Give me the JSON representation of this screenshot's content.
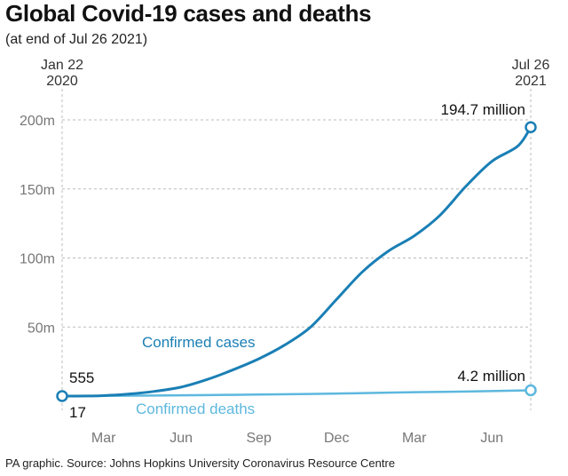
{
  "title": "Global Covid-19 cases and deaths",
  "subtitle": "(at end of Jul 26 2021)",
  "source": "PA graphic. Source: Johns Hopkins University Coronavirus Resource Centre",
  "colors": {
    "cases": "#1a7fb5",
    "deaths": "#5db8de",
    "grid": "#bbbbbb",
    "axis_text": "#777777"
  },
  "chart_data": {
    "type": "line",
    "title": "Global Covid-19 cases and deaths",
    "subtitle": "(at end of Jul 26 2021)",
    "xlabel": "",
    "ylabel": "",
    "x_start_label": [
      "Jan 22",
      "2020"
    ],
    "x_end_label": [
      "Jul 26",
      "2021"
    ],
    "x_ticks": [
      {
        "label": "Mar",
        "month_index": 1.6
      },
      {
        "label": "Jun",
        "month_index": 4.6
      },
      {
        "label": "Sep",
        "month_index": 7.6
      },
      {
        "label": "Dec",
        "month_index": 10.6
      },
      {
        "label": "Mar",
        "month_index": 13.6
      },
      {
        "label": "Jun",
        "month_index": 16.6
      }
    ],
    "x_range_months": [
      0,
      18.1
    ],
    "y_ticks": [
      {
        "label": "50m",
        "value": 50
      },
      {
        "label": "100m",
        "value": 100
      },
      {
        "label": "150m",
        "value": 150
      },
      {
        "label": "200m",
        "value": 200
      }
    ],
    "ylim": [
      0,
      200
    ],
    "y_units": "millions",
    "grid": true,
    "series": [
      {
        "name": "Confirmed cases",
        "start_label": "555",
        "end_label": "194.7 million",
        "points": [
          [
            0,
            0.0006
          ],
          [
            1.0,
            0.08
          ],
          [
            1.6,
            0.3
          ],
          [
            2.6,
            1.5
          ],
          [
            3.6,
            3.5
          ],
          [
            4.6,
            6.5
          ],
          [
            5.6,
            12
          ],
          [
            6.6,
            19
          ],
          [
            7.6,
            27
          ],
          [
            8.6,
            37
          ],
          [
            9.6,
            50
          ],
          [
            10.6,
            70
          ],
          [
            11.6,
            90
          ],
          [
            12.6,
            105
          ],
          [
            13.6,
            116
          ],
          [
            14.6,
            131
          ],
          [
            15.6,
            152
          ],
          [
            16.6,
            170
          ],
          [
            17.6,
            181
          ],
          [
            18.1,
            194.7
          ]
        ]
      },
      {
        "name": "Confirmed deaths",
        "start_label": "17",
        "end_label": "4.2 million",
        "points": [
          [
            0,
            1.7e-05
          ],
          [
            3.6,
            0.4
          ],
          [
            6.6,
            0.9
          ],
          [
            9.6,
            1.5
          ],
          [
            12.6,
            2.5
          ],
          [
            15.6,
            3.3
          ],
          [
            18.1,
            4.2
          ]
        ]
      }
    ]
  }
}
